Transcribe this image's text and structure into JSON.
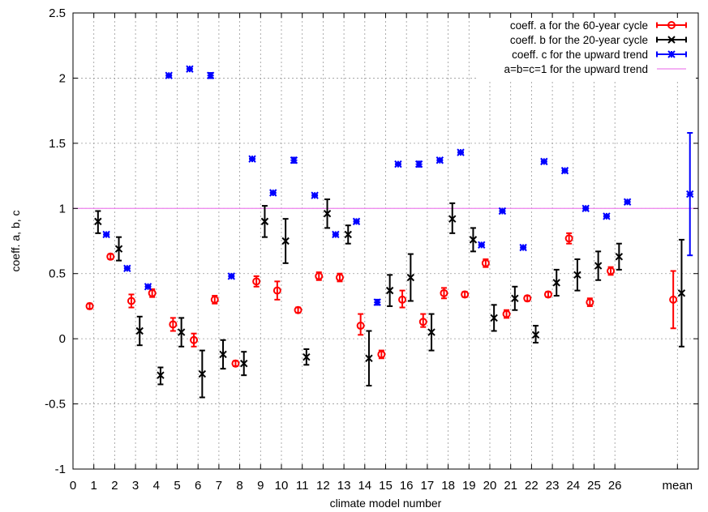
{
  "chart_data": {
    "type": "scatter",
    "xlabel": "climate model number",
    "ylabel": "coeff. a, b, c",
    "xlim": [
      0,
      30
    ],
    "ylim": [
      -1,
      2.5
    ],
    "x_ticks": [
      {
        "x": 0,
        "label": "0"
      },
      {
        "x": 1,
        "label": "1"
      },
      {
        "x": 2,
        "label": "2"
      },
      {
        "x": 3,
        "label": "3"
      },
      {
        "x": 4,
        "label": "4"
      },
      {
        "x": 5,
        "label": "5"
      },
      {
        "x": 6,
        "label": "6"
      },
      {
        "x": 7,
        "label": "7"
      },
      {
        "x": 8,
        "label": "8"
      },
      {
        "x": 9,
        "label": "9"
      },
      {
        "x": 10,
        "label": "10"
      },
      {
        "x": 11,
        "label": "11"
      },
      {
        "x": 12,
        "label": "12"
      },
      {
        "x": 13,
        "label": "13"
      },
      {
        "x": 14,
        "label": "14"
      },
      {
        "x": 15,
        "label": "15"
      },
      {
        "x": 16,
        "label": "16"
      },
      {
        "x": 17,
        "label": "17"
      },
      {
        "x": 18,
        "label": "18"
      },
      {
        "x": 19,
        "label": "19"
      },
      {
        "x": 20,
        "label": "20"
      },
      {
        "x": 21,
        "label": "21"
      },
      {
        "x": 22,
        "label": "22"
      },
      {
        "x": 23,
        "label": "23"
      },
      {
        "x": 24,
        "label": "24"
      },
      {
        "x": 25,
        "label": "25"
      },
      {
        "x": 26,
        "label": "26"
      },
      {
        "x": 29,
        "label": "mean"
      }
    ],
    "y_ticks": [
      {
        "y": -1,
        "label": "-1"
      },
      {
        "y": -0.5,
        "label": "-0.5"
      },
      {
        "y": 0,
        "label": "0"
      },
      {
        "y": 0.5,
        "label": "0.5"
      },
      {
        "y": 1,
        "label": "1"
      },
      {
        "y": 1.5,
        "label": "1.5"
      },
      {
        "y": 2,
        "label": "2"
      },
      {
        "y": 2.5,
        "label": "2.5"
      }
    ],
    "grid": true,
    "legend_position": "top-right",
    "reference_line": {
      "y": 1,
      "name": "a=b=c=1 for the upward trend",
      "color": "#ee82ee"
    },
    "series": [
      {
        "name": "coeff. a for the 60-year cycle",
        "color": "#ff0000",
        "marker": "circle",
        "points": [
          {
            "x": 0.8,
            "y": 0.25,
            "lo": 0.23,
            "hi": 0.27
          },
          {
            "x": 1.8,
            "y": 0.63,
            "lo": 0.61,
            "hi": 0.65
          },
          {
            "x": 2.8,
            "y": 0.29,
            "lo": 0.24,
            "hi": 0.34
          },
          {
            "x": 3.8,
            "y": 0.35,
            "lo": 0.32,
            "hi": 0.38
          },
          {
            "x": 4.8,
            "y": 0.11,
            "lo": 0.06,
            "hi": 0.16
          },
          {
            "x": 5.8,
            "y": -0.01,
            "lo": -0.06,
            "hi": 0.04
          },
          {
            "x": 6.8,
            "y": 0.3,
            "lo": 0.27,
            "hi": 0.33
          },
          {
            "x": 7.8,
            "y": -0.19,
            "lo": -0.21,
            "hi": -0.17
          },
          {
            "x": 8.8,
            "y": 0.44,
            "lo": 0.4,
            "hi": 0.48
          },
          {
            "x": 9.8,
            "y": 0.37,
            "lo": 0.3,
            "hi": 0.44
          },
          {
            "x": 10.8,
            "y": 0.22,
            "lo": 0.2,
            "hi": 0.24
          },
          {
            "x": 11.8,
            "y": 0.48,
            "lo": 0.45,
            "hi": 0.51
          },
          {
            "x": 12.8,
            "y": 0.47,
            "lo": 0.44,
            "hi": 0.5
          },
          {
            "x": 13.8,
            "y": 0.1,
            "lo": 0.03,
            "hi": 0.19
          },
          {
            "x": 14.8,
            "y": -0.12,
            "lo": -0.15,
            "hi": -0.09
          },
          {
            "x": 15.8,
            "y": 0.3,
            "lo": 0.24,
            "hi": 0.37
          },
          {
            "x": 16.8,
            "y": 0.13,
            "lo": 0.09,
            "hi": 0.19
          },
          {
            "x": 17.8,
            "y": 0.35,
            "lo": 0.31,
            "hi": 0.39
          },
          {
            "x": 18.8,
            "y": 0.34,
            "lo": 0.32,
            "hi": 0.36
          },
          {
            "x": 19.8,
            "y": 0.58,
            "lo": 0.55,
            "hi": 0.61
          },
          {
            "x": 20.8,
            "y": 0.19,
            "lo": 0.16,
            "hi": 0.22
          },
          {
            "x": 21.8,
            "y": 0.31,
            "lo": 0.29,
            "hi": 0.33
          },
          {
            "x": 22.8,
            "y": 0.34,
            "lo": 0.32,
            "hi": 0.36
          },
          {
            "x": 23.8,
            "y": 0.77,
            "lo": 0.73,
            "hi": 0.81
          },
          {
            "x": 24.8,
            "y": 0.28,
            "lo": 0.25,
            "hi": 0.31
          },
          {
            "x": 25.8,
            "y": 0.52,
            "lo": 0.49,
            "hi": 0.55
          },
          {
            "x": 28.8,
            "y": 0.3,
            "lo": 0.08,
            "hi": 0.52
          }
        ]
      },
      {
        "name": "coeff. b for the 20-year cycle",
        "color": "#000000",
        "marker": "x",
        "points": [
          {
            "x": 1.2,
            "y": 0.9,
            "lo": 0.81,
            "hi": 0.98
          },
          {
            "x": 2.2,
            "y": 0.69,
            "lo": 0.6,
            "hi": 0.78
          },
          {
            "x": 3.2,
            "y": 0.06,
            "lo": -0.05,
            "hi": 0.17
          },
          {
            "x": 4.2,
            "y": -0.28,
            "lo": -0.35,
            "hi": -0.22
          },
          {
            "x": 5.2,
            "y": 0.05,
            "lo": -0.06,
            "hi": 0.16
          },
          {
            "x": 6.2,
            "y": -0.27,
            "lo": -0.45,
            "hi": -0.09
          },
          {
            "x": 7.2,
            "y": -0.12,
            "lo": -0.23,
            "hi": -0.01
          },
          {
            "x": 8.2,
            "y": -0.19,
            "lo": -0.28,
            "hi": -0.1
          },
          {
            "x": 9.2,
            "y": 0.9,
            "lo": 0.78,
            "hi": 1.02
          },
          {
            "x": 10.2,
            "y": 0.75,
            "lo": 0.58,
            "hi": 0.92
          },
          {
            "x": 11.2,
            "y": -0.14,
            "lo": -0.2,
            "hi": -0.08
          },
          {
            "x": 12.2,
            "y": 0.96,
            "lo": 0.85,
            "hi": 1.07
          },
          {
            "x": 13.2,
            "y": 0.8,
            "lo": 0.73,
            "hi": 0.87
          },
          {
            "x": 14.2,
            "y": -0.15,
            "lo": -0.36,
            "hi": 0.06
          },
          {
            "x": 15.2,
            "y": 0.37,
            "lo": 0.25,
            "hi": 0.49
          },
          {
            "x": 16.2,
            "y": 0.47,
            "lo": 0.29,
            "hi": 0.65
          },
          {
            "x": 17.2,
            "y": 0.05,
            "lo": -0.09,
            "hi": 0.19
          },
          {
            "x": 18.2,
            "y": 0.92,
            "lo": 0.81,
            "hi": 1.04
          },
          {
            "x": 19.2,
            "y": 0.76,
            "lo": 0.67,
            "hi": 0.85
          },
          {
            "x": 20.2,
            "y": 0.16,
            "lo": 0.06,
            "hi": 0.26
          },
          {
            "x": 21.2,
            "y": 0.31,
            "lo": 0.22,
            "hi": 0.4
          },
          {
            "x": 22.2,
            "y": 0.03,
            "lo": -0.03,
            "hi": 0.1
          },
          {
            "x": 23.2,
            "y": 0.43,
            "lo": 0.33,
            "hi": 0.53
          },
          {
            "x": 24.2,
            "y": 0.49,
            "lo": 0.37,
            "hi": 0.61
          },
          {
            "x": 25.2,
            "y": 0.56,
            "lo": 0.45,
            "hi": 0.67
          },
          {
            "x": 26.2,
            "y": 0.63,
            "lo": 0.53,
            "hi": 0.73
          },
          {
            "x": 29.2,
            "y": 0.35,
            "lo": -0.06,
            "hi": 0.76
          }
        ]
      },
      {
        "name": "coeff. c for the upward trend",
        "color": "#0000ff",
        "marker": "star",
        "points": [
          {
            "x": 1.6,
            "y": 0.8,
            "lo": 0.79,
            "hi": 0.81
          },
          {
            "x": 2.6,
            "y": 0.54,
            "lo": 0.53,
            "hi": 0.55
          },
          {
            "x": 3.6,
            "y": 0.4,
            "lo": 0.39,
            "hi": 0.41
          },
          {
            "x": 4.6,
            "y": 2.02,
            "lo": 2.01,
            "hi": 2.03
          },
          {
            "x": 5.6,
            "y": 2.07,
            "lo": 2.06,
            "hi": 2.08
          },
          {
            "x": 6.6,
            "y": 2.02,
            "lo": 2.0,
            "hi": 2.04
          },
          {
            "x": 7.6,
            "y": 0.48,
            "lo": 0.47,
            "hi": 0.49
          },
          {
            "x": 8.6,
            "y": 1.38,
            "lo": 1.37,
            "hi": 1.39
          },
          {
            "x": 9.6,
            "y": 1.12,
            "lo": 1.11,
            "hi": 1.13
          },
          {
            "x": 10.6,
            "y": 1.37,
            "lo": 1.35,
            "hi": 1.39
          },
          {
            "x": 11.6,
            "y": 1.1,
            "lo": 1.09,
            "hi": 1.11
          },
          {
            "x": 12.6,
            "y": 0.8,
            "lo": 0.79,
            "hi": 0.81
          },
          {
            "x": 13.6,
            "y": 0.9,
            "lo": 0.89,
            "hi": 0.91
          },
          {
            "x": 14.6,
            "y": 0.28,
            "lo": 0.26,
            "hi": 0.3
          },
          {
            "x": 15.6,
            "y": 1.34,
            "lo": 1.33,
            "hi": 1.35
          },
          {
            "x": 16.6,
            "y": 1.34,
            "lo": 1.32,
            "hi": 1.36
          },
          {
            "x": 17.6,
            "y": 1.37,
            "lo": 1.36,
            "hi": 1.38
          },
          {
            "x": 18.6,
            "y": 1.43,
            "lo": 1.42,
            "hi": 1.44
          },
          {
            "x": 19.6,
            "y": 0.72,
            "lo": 0.71,
            "hi": 0.73
          },
          {
            "x": 20.6,
            "y": 0.98,
            "lo": 0.97,
            "hi": 0.99
          },
          {
            "x": 21.6,
            "y": 0.7,
            "lo": 0.69,
            "hi": 0.71
          },
          {
            "x": 22.6,
            "y": 1.36,
            "lo": 1.35,
            "hi": 1.37
          },
          {
            "x": 23.6,
            "y": 1.29,
            "lo": 1.28,
            "hi": 1.3
          },
          {
            "x": 24.6,
            "y": 1.0,
            "lo": 0.99,
            "hi": 1.01
          },
          {
            "x": 25.6,
            "y": 0.94,
            "lo": 0.93,
            "hi": 0.95
          },
          {
            "x": 26.6,
            "y": 1.05,
            "lo": 1.04,
            "hi": 1.06
          },
          {
            "x": 29.6,
            "y": 1.11,
            "lo": 0.64,
            "hi": 1.58
          }
        ]
      }
    ]
  }
}
